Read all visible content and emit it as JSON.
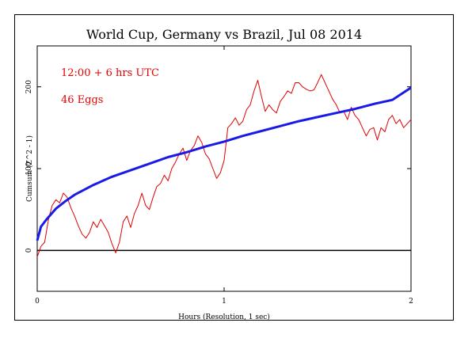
{
  "chart_data": {
    "type": "line",
    "title": "World Cup, Germany vs Brazil, Jul 08 2014",
    "xlabel": "Hours (Resolution, 1 sec)",
    "ylabel": "Cumsum (Z^2 - 1)",
    "xlim": [
      0,
      2
    ],
    "ylim": [
      -50,
      250
    ],
    "x_ticks": [
      0,
      1,
      2
    ],
    "x_tick_labels": [
      "0",
      "1",
      "2"
    ],
    "y_ticks": [
      0,
      100,
      200
    ],
    "y_tick_labels": [
      "0",
      "100",
      "200"
    ],
    "grid": false,
    "annotations": [
      "12:00 + 6 hrs UTC",
      "46 Eggs"
    ],
    "reference_line": {
      "y": 0
    },
    "series": [
      {
        "color": "#e00000",
        "x": [
          0.0,
          0.02,
          0.04,
          0.06,
          0.08,
          0.1,
          0.12,
          0.14,
          0.16,
          0.18,
          0.2,
          0.22,
          0.24,
          0.26,
          0.28,
          0.3,
          0.32,
          0.34,
          0.36,
          0.38,
          0.4,
          0.42,
          0.44,
          0.46,
          0.48,
          0.5,
          0.52,
          0.54,
          0.56,
          0.58,
          0.6,
          0.62,
          0.64,
          0.66,
          0.68,
          0.7,
          0.72,
          0.74,
          0.76,
          0.78,
          0.8,
          0.82,
          0.84,
          0.86,
          0.88,
          0.9,
          0.92,
          0.94,
          0.96,
          0.98,
          1.0,
          1.02,
          1.04,
          1.06,
          1.08,
          1.1,
          1.12,
          1.14,
          1.16,
          1.18,
          1.2,
          1.22,
          1.24,
          1.26,
          1.28,
          1.3,
          1.32,
          1.34,
          1.36,
          1.38,
          1.4,
          1.42,
          1.44,
          1.46,
          1.48,
          1.5,
          1.52,
          1.54,
          1.56,
          1.58,
          1.6,
          1.62,
          1.64,
          1.66,
          1.68,
          1.7,
          1.72,
          1.74,
          1.76,
          1.78,
          1.8,
          1.82,
          1.84,
          1.86,
          1.88,
          1.9,
          1.92,
          1.94,
          1.96,
          1.98,
          2.0
        ],
        "values": [
          -8,
          5,
          10,
          38,
          55,
          62,
          58,
          70,
          65,
          52,
          42,
          30,
          20,
          15,
          22,
          35,
          28,
          38,
          30,
          22,
          8,
          -3,
          10,
          35,
          42,
          28,
          45,
          55,
          70,
          55,
          50,
          65,
          78,
          82,
          92,
          85,
          100,
          108,
          118,
          125,
          110,
          122,
          128,
          140,
          132,
          118,
          112,
          100,
          88,
          95,
          110,
          150,
          155,
          162,
          153,
          158,
          172,
          178,
          195,
          208,
          188,
          170,
          178,
          172,
          168,
          182,
          188,
          195,
          192,
          205,
          205,
          200,
          197,
          195,
          196,
          205,
          215,
          205,
          195,
          185,
          178,
          168,
          170,
          160,
          175,
          165,
          160,
          150,
          140,
          148,
          150,
          135,
          150,
          145,
          160,
          165,
          155,
          160,
          150,
          155,
          160
        ]
      },
      {
        "color": "#1a1ae6",
        "x": [
          0.0,
          0.02,
          0.05,
          0.1,
          0.15,
          0.2,
          0.3,
          0.4,
          0.5,
          0.6,
          0.7,
          0.8,
          0.9,
          1.0,
          1.1,
          1.2,
          1.3,
          1.4,
          1.5,
          1.6,
          1.7,
          1.8,
          1.9,
          2.0
        ],
        "values": [
          12,
          29,
          38,
          51,
          60,
          68,
          80,
          90,
          98,
          106,
          114,
          120,
          127,
          133,
          140,
          146,
          152,
          158,
          163,
          168,
          173,
          179,
          184,
          199
        ]
      }
    ]
  }
}
